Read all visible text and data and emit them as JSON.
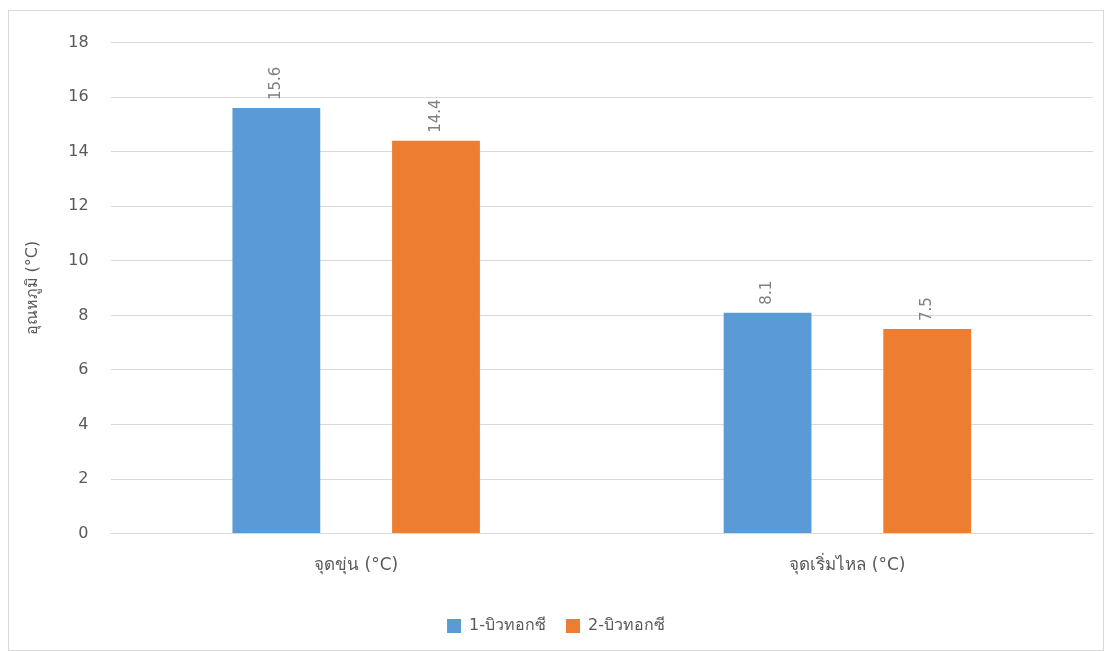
{
  "chart_data": {
    "type": "bar",
    "ylabel": "อุณหภูมิ (°C)",
    "categories": [
      "จุดขุ่น (°C)",
      "จุดเริ่มไหล (°C)"
    ],
    "series": [
      {
        "name": "1-บิวทอกซี",
        "color": "#5b9bd5",
        "values": [
          15.6,
          8.1
        ]
      },
      {
        "name": "2-บิวทอกซี",
        "color": "#ed7d31",
        "values": [
          14.4,
          7.5
        ]
      }
    ],
    "ylim": [
      0,
      18
    ],
    "yticks": [
      0,
      2,
      4,
      6,
      8,
      10,
      12,
      14,
      16,
      18
    ],
    "grid": "y",
    "legend": "bottom",
    "data_labels": true
  }
}
